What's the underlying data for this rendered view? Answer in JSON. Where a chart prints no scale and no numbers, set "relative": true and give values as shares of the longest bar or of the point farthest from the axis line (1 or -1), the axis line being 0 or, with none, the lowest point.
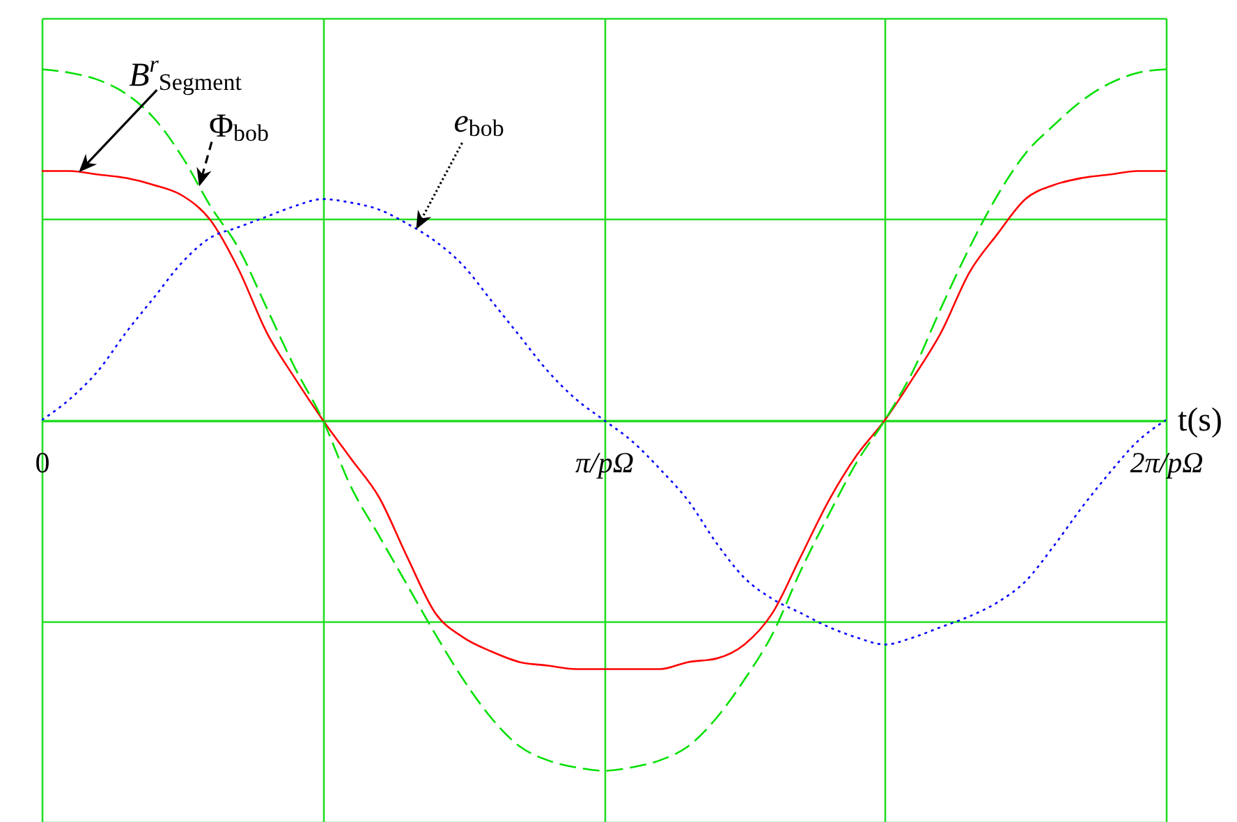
{
  "chart_data": {
    "type": "line",
    "relative": true,
    "xlabel": "t(s)",
    "categories": [
      "0",
      null,
      null,
      null,
      null,
      null,
      null,
      null,
      null,
      null,
      null,
      null,
      null,
      null,
      null,
      null,
      null,
      null,
      null,
      null,
      "π/pΩ",
      null,
      null,
      null,
      null,
      null,
      null,
      null,
      null,
      null,
      null,
      null,
      null,
      null,
      null,
      null,
      null,
      null,
      null,
      null,
      "2π/pΩ"
    ],
    "grid": true,
    "series": [
      {
        "name": "B$^{r}$$_{Segment}$",
        "color": "#ff0000",
        "line_style": "solid",
        "values": [
          0.71,
          0.71,
          0.7,
          0.69,
          0.67,
          0.64,
          0.57,
          0.43,
          0.25,
          0.12,
          0,
          -0.11,
          -0.22,
          -0.39,
          -0.55,
          -0.62,
          -0.66,
          -0.69,
          -0.7,
          -0.71,
          -0.71,
          -0.71,
          -0.71,
          -0.69,
          -0.68,
          -0.64,
          -0.55,
          -0.39,
          -0.23,
          -0.1,
          0,
          0.12,
          0.25,
          0.42,
          0.53,
          0.63,
          0.67,
          0.69,
          0.7,
          0.71,
          0.71
        ]
      },
      {
        "name": "Φ$_{bob}$",
        "color": "#00e000",
        "line_style": "dashed",
        "values": [
          1,
          0.99,
          0.97,
          0.93,
          0.86,
          0.75,
          0.61,
          0.49,
          0.32,
          0.15,
          0,
          -0.19,
          -0.33,
          -0.47,
          -0.61,
          -0.74,
          -0.85,
          -0.93,
          -0.97,
          -0.99,
          -1,
          -0.99,
          -0.97,
          -0.93,
          -0.85,
          -0.74,
          -0.61,
          -0.43,
          -0.27,
          -0.12,
          0,
          0.14,
          0.32,
          0.49,
          0.64,
          0.76,
          0.84,
          0.91,
          0.96,
          0.99,
          1
        ]
      },
      {
        "name": "e$_{bob}$",
        "color": "#0000ff",
        "line_style": "dotted",
        "values": [
          0,
          0.06,
          0.14,
          0.25,
          0.35,
          0.45,
          0.52,
          0.55,
          0.58,
          0.61,
          0.63,
          0.62,
          0.6,
          0.56,
          0.51,
          0.44,
          0.34,
          0.24,
          0.14,
          0.06,
          0,
          -0.06,
          -0.14,
          -0.23,
          -0.35,
          -0.45,
          -0.51,
          -0.55,
          -0.59,
          -0.62,
          -0.64,
          -0.62,
          -0.59,
          -0.56,
          -0.52,
          -0.46,
          -0.36,
          -0.25,
          -0.15,
          -0.06,
          0
        ]
      }
    ]
  }
}
